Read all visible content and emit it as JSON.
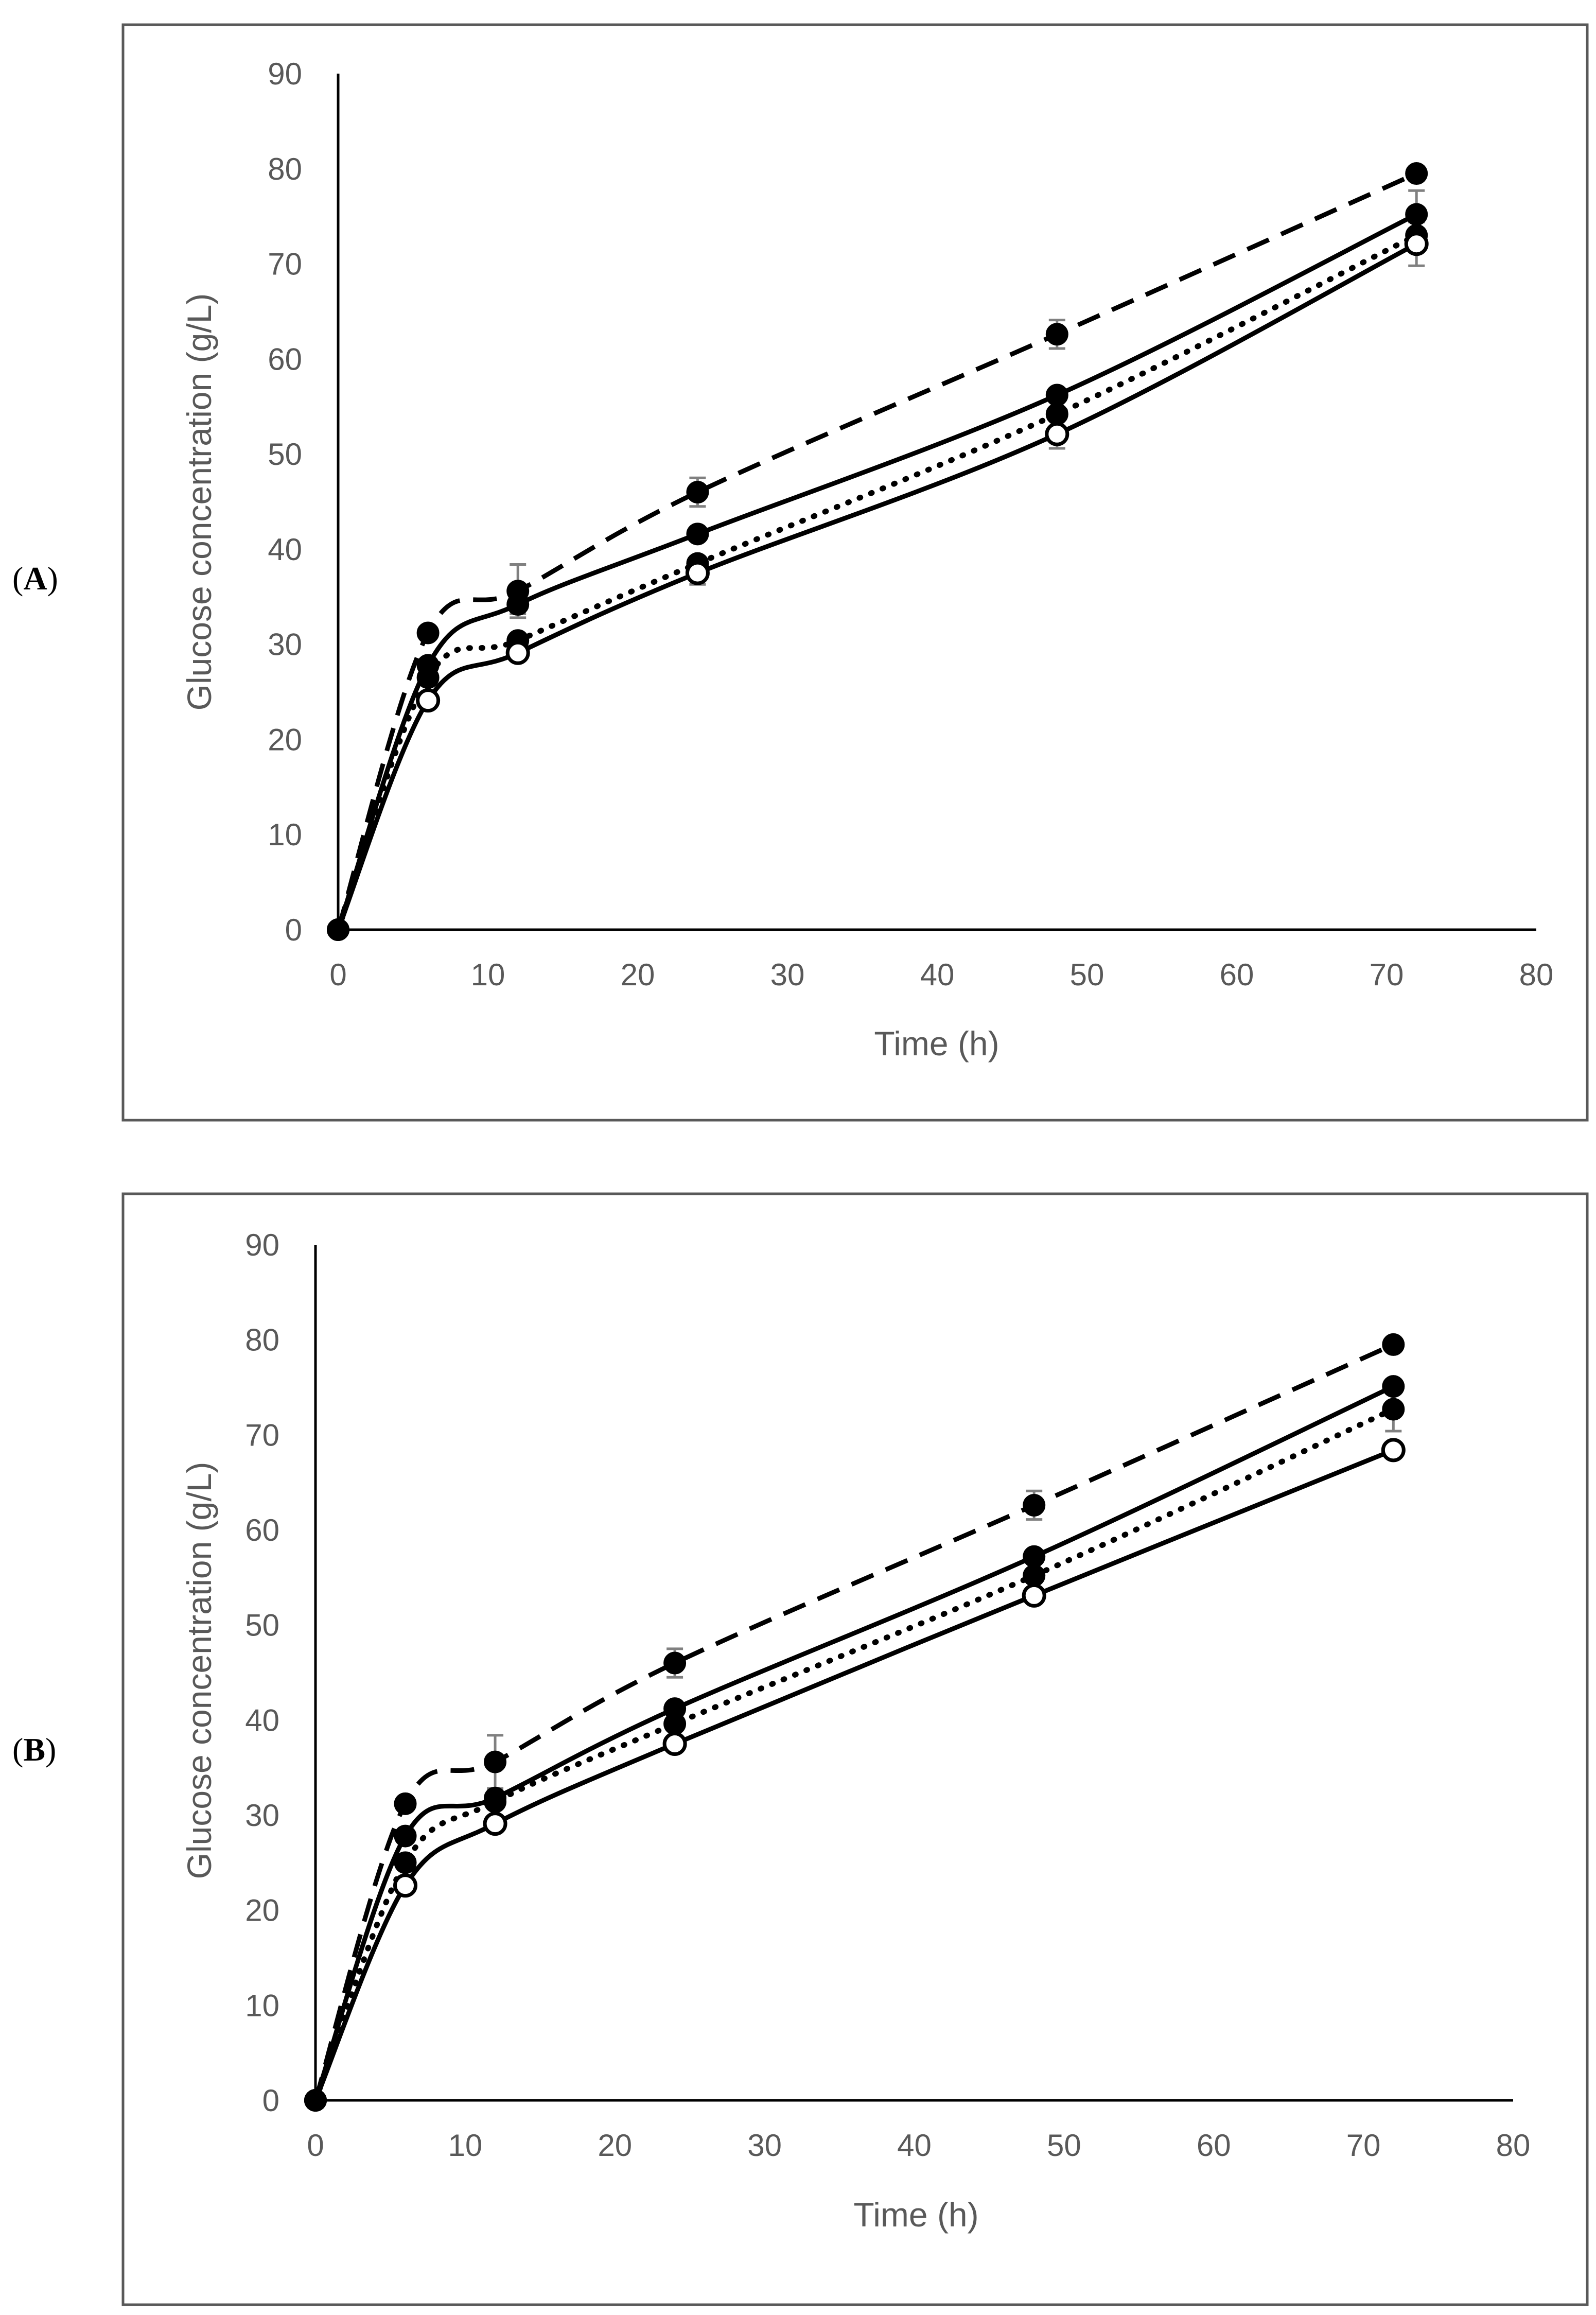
{
  "chart_data": [
    {
      "type": "line",
      "panel": "A",
      "panel_label": {
        "open": "(",
        "letter": "A",
        "close": ")"
      },
      "xlabel": "Time (h)",
      "ylabel": "Glucose concentration (g/L)",
      "xlim": [
        0,
        80
      ],
      "ylim": [
        0,
        90
      ],
      "xticks": [
        0,
        10,
        20,
        30,
        40,
        50,
        60,
        70,
        80
      ],
      "yticks": [
        0,
        10,
        20,
        30,
        40,
        50,
        60,
        70,
        80,
        90
      ],
      "grid": false,
      "x": [
        0,
        6,
        12,
        24,
        48,
        72
      ],
      "series": [
        {
          "name": "dashed, filled markers",
          "line": "dashed",
          "marker": "filled",
          "values": [
            0,
            31.2,
            35.6,
            46.0,
            62.6,
            79.5
          ],
          "errors": [
            0,
            0,
            2.8,
            1.5,
            1.5,
            0
          ]
        },
        {
          "name": "solid, filled markers",
          "line": "solid",
          "marker": "filled",
          "values": [
            0,
            27.8,
            34.2,
            41.6,
            56.2,
            75.2
          ],
          "errors": [
            0,
            0,
            1.0,
            0,
            0,
            2.5
          ]
        },
        {
          "name": "dotted, filled markers",
          "line": "dotted",
          "marker": "filled",
          "values": [
            0,
            26.5,
            30.4,
            38.5,
            54.2,
            73.0
          ],
          "errors": [
            0,
            0,
            0,
            0,
            0,
            0
          ]
        },
        {
          "name": "solid, open markers",
          "line": "solid",
          "marker": "open",
          "values": [
            0,
            24.1,
            29.1,
            37.5,
            52.1,
            72.1
          ],
          "errors": [
            0,
            0,
            0,
            1.2,
            1.5,
            2.3
          ]
        }
      ]
    },
    {
      "type": "line",
      "panel": "B",
      "panel_label": {
        "open": "(",
        "letter": "B",
        "close": ")"
      },
      "xlabel": "Time (h)",
      "ylabel": "Glucose concentration (g/L)",
      "xlim": [
        0,
        80
      ],
      "ylim": [
        0,
        90
      ],
      "xticks": [
        0,
        10,
        20,
        30,
        40,
        50,
        60,
        70,
        80
      ],
      "yticks": [
        0,
        10,
        20,
        30,
        40,
        50,
        60,
        70,
        80,
        90
      ],
      "grid": false,
      "x": [
        0,
        6,
        12,
        24,
        48,
        72
      ],
      "series": [
        {
          "name": "dashed, filled markers",
          "line": "dashed",
          "marker": "filled",
          "values": [
            0,
            31.2,
            35.6,
            46.0,
            62.6,
            79.5
          ],
          "errors": [
            0,
            0,
            2.8,
            1.5,
            1.5,
            0
          ]
        },
        {
          "name": "solid, filled markers",
          "line": "solid",
          "marker": "filled",
          "values": [
            0,
            27.8,
            31.8,
            41.2,
            57.2,
            75.1
          ],
          "errors": [
            0,
            0,
            0,
            0,
            0,
            0
          ]
        },
        {
          "name": "dotted, filled markers",
          "line": "dotted",
          "marker": "filled",
          "values": [
            0,
            25.0,
            31.4,
            39.6,
            55.2,
            72.7
          ],
          "errors": [
            0,
            0,
            0,
            0,
            0,
            2.3
          ]
        },
        {
          "name": "solid, open markers",
          "line": "solid",
          "marker": "open",
          "values": [
            0,
            22.6,
            29.1,
            37.5,
            53.1,
            68.4
          ],
          "errors": [
            0,
            0,
            0,
            0,
            0,
            0
          ]
        }
      ]
    }
  ]
}
